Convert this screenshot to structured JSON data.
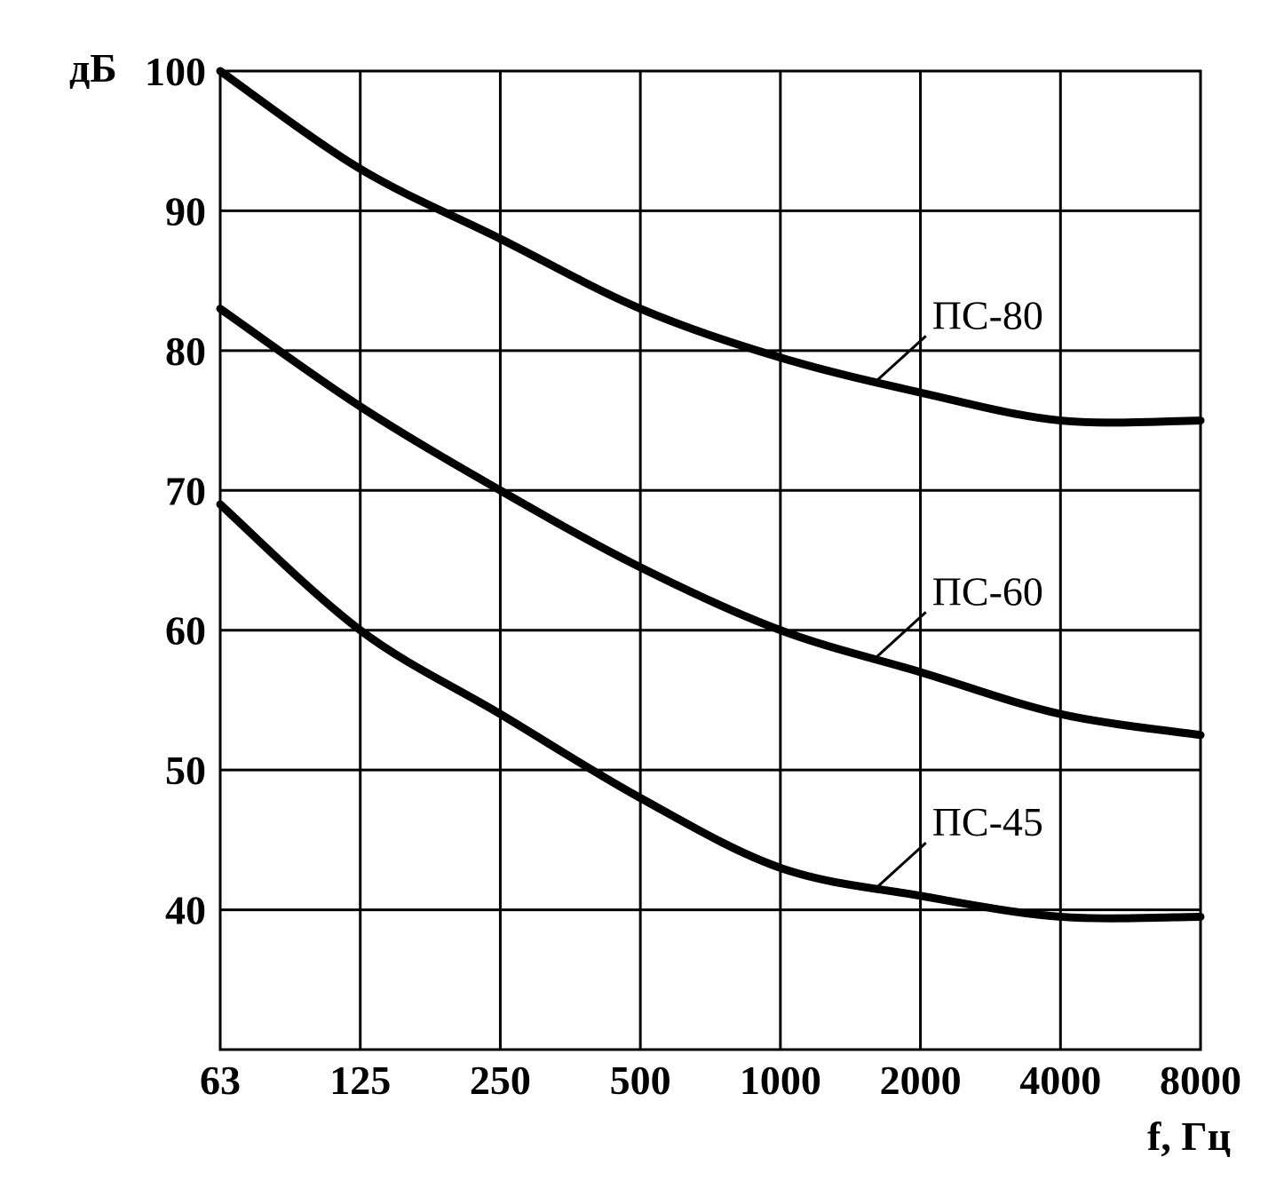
{
  "chart_data": {
    "type": "line",
    "title": "",
    "xlabel": "f, Гц",
    "ylabel": "дБ",
    "x_categories": [
      "63",
      "125",
      "250",
      "500",
      "1000",
      "2000",
      "4000",
      "8000"
    ],
    "y_ticks": [
      "100",
      "90",
      "80",
      "70",
      "60",
      "50",
      "40"
    ],
    "ylim": [
      30,
      100
    ],
    "grid": true,
    "series": [
      {
        "name": "ПС-80",
        "x": [
          "63",
          "125",
          "250",
          "500",
          "1000",
          "2000",
          "4000",
          "8000"
        ],
        "values": [
          100,
          93,
          88,
          83,
          79.5,
          77,
          75,
          75
        ]
      },
      {
        "name": "ПС-60",
        "x": [
          "63",
          "125",
          "250",
          "500",
          "1000",
          "2000",
          "4000",
          "8000"
        ],
        "values": [
          83,
          76,
          70,
          64.5,
          60,
          57,
          54,
          52.5
        ]
      },
      {
        "name": "ПС-45",
        "x": [
          "63",
          "125",
          "250",
          "500",
          "1000",
          "2000",
          "4000",
          "8000"
        ],
        "values": [
          69,
          60,
          54,
          48,
          43,
          41,
          39.5,
          39.5
        ]
      }
    ],
    "line_color": "#000000"
  }
}
